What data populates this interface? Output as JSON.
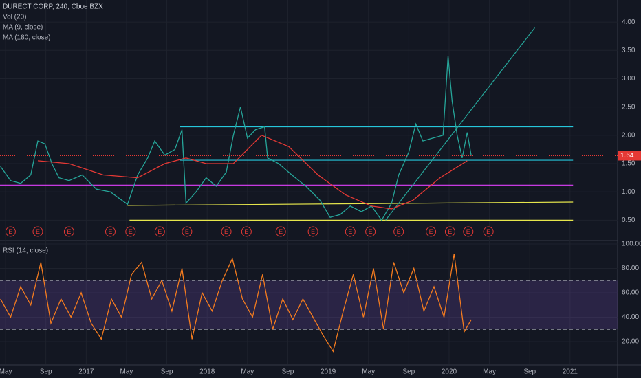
{
  "chart_data": [
    {
      "type": "line",
      "title": "DURECT CORP, 240, Cboe BZX",
      "indicators": [
        "Vol (20)",
        "MA (9, close)",
        "MA (180, close)"
      ],
      "xlim": [
        3.45,
        64.65
      ],
      "xticks": [
        {
          "value": 4,
          "label": "May"
        },
        {
          "value": 8,
          "label": "Sep"
        },
        {
          "value": 12,
          "label": "2017"
        },
        {
          "value": 16,
          "label": "May"
        },
        {
          "value": 20,
          "label": "Sep"
        },
        {
          "value": 24,
          "label": "2018"
        },
        {
          "value": 28,
          "label": "May"
        },
        {
          "value": 32,
          "label": "Sep"
        },
        {
          "value": 36,
          "label": "2019"
        },
        {
          "value": 40,
          "label": "May"
        },
        {
          "value": 44,
          "label": "Sep"
        },
        {
          "value": 48,
          "label": "2020"
        },
        {
          "value": 52,
          "label": "May"
        },
        {
          "value": 56,
          "label": "Sep"
        },
        {
          "value": 60,
          "label": "2021"
        }
      ],
      "ylim": [
        0.14,
        4.39
      ],
      "yticks": [
        {
          "value": 0.5,
          "label": "0.50"
        },
        {
          "value": 1,
          "label": "1.00"
        },
        {
          "value": 1.5,
          "label": "1.50"
        },
        {
          "value": 2,
          "label": "2.00"
        },
        {
          "value": 2.5,
          "label": "2.50"
        },
        {
          "value": 3,
          "label": "3.00"
        },
        {
          "value": 3.5,
          "label": "3.50"
        },
        {
          "value": 4,
          "label": "4.00"
        }
      ],
      "series": [
        {
          "color": "#26a69a",
          "x": [
            3.5,
            4.5,
            5.5,
            6.5,
            7.2,
            7.9,
            8.6,
            9.3,
            10.3,
            11.6,
            13,
            14.4,
            16.1,
            17.1,
            18.1,
            18.8,
            19.8,
            20.8,
            21.5,
            21.9,
            22.9,
            23.9,
            24.9,
            25.9,
            26.6,
            27.3,
            28,
            28.8,
            29.7,
            30,
            31.1,
            32.4,
            33.8,
            35.2,
            36.2,
            37.2,
            38.2,
            39.3,
            40.3,
            41.3,
            42.3,
            43,
            44,
            44.7,
            45.4,
            46.4,
            47.4,
            47.9,
            48.3,
            48.8,
            49.3,
            49.8,
            50.2
          ],
          "values": [
            1.45,
            1.2,
            1.15,
            1.3,
            1.9,
            1.85,
            1.5,
            1.25,
            1.2,
            1.3,
            1.05,
            1.0,
            0.78,
            1.3,
            1.6,
            1.9,
            1.65,
            1.75,
            2.1,
            0.8,
            1.0,
            1.25,
            1.1,
            1.35,
            2.0,
            2.5,
            1.95,
            2.1,
            2.15,
            1.6,
            1.5,
            1.3,
            1.1,
            0.85,
            0.55,
            0.6,
            0.75,
            0.65,
            0.75,
            0.5,
            0.8,
            1.3,
            1.7,
            2.2,
            1.9,
            1.95,
            2.0,
            3.4,
            2.6,
            2.0,
            1.6,
            2.05,
            1.64
          ]
        },
        {
          "color": "#e53935",
          "x": [
            7.2,
            10.3,
            13.7,
            17.1,
            19.8,
            21.9,
            23.9,
            26.6,
            29.4,
            32.1,
            35,
            37.7,
            40.3,
            42.3,
            44.4,
            47.1,
            49.8
          ],
          "values": [
            1.55,
            1.5,
            1.3,
            1.25,
            1.5,
            1.6,
            1.5,
            1.5,
            2.0,
            1.8,
            1.3,
            0.95,
            0.75,
            0.7,
            0.85,
            1.25,
            1.55
          ]
        }
      ],
      "drawings": [
        {
          "color": "#26c6da",
          "x": [
            21.3,
            60.3
          ],
          "y": [
            2.15,
            2.15
          ]
        },
        {
          "color": "#26c6da",
          "x": [
            21.3,
            60.3
          ],
          "y": [
            1.56,
            1.56
          ]
        },
        {
          "color": "#e040fb",
          "x": [
            3.45,
            60.3
          ],
          "y": [
            1.12,
            1.12
          ]
        },
        {
          "color": "#e6e64c",
          "x": [
            16.1,
            60.3
          ],
          "y": [
            0.76,
            0.82
          ]
        },
        {
          "color": "#e6e64c",
          "x": [
            16.3,
            60.3
          ],
          "y": [
            0.5,
            0.5
          ]
        },
        {
          "color": "#26a69a",
          "x": [
            41.7,
            56.5
          ],
          "y": [
            0.5,
            3.9
          ]
        }
      ],
      "last_price": 1.64,
      "earnings": {
        "label": "E",
        "x": [
          4.5,
          7.2,
          10.3,
          14.4,
          16.4,
          19.3,
          22,
          25.9,
          27.9,
          31.3,
          34.5,
          38.2,
          40.2,
          43,
          46.2,
          48.1,
          49.9,
          51.9
        ]
      }
    },
    {
      "type": "line",
      "title": "RSI (14, close)",
      "xlim": [
        3.45,
        64.65
      ],
      "ylim": [
        1.4,
        102.8
      ],
      "yticks": [
        {
          "value": 20,
          "label": "20.00"
        },
        {
          "value": 40,
          "label": "40.00"
        },
        {
          "value": 60,
          "label": "60.00"
        },
        {
          "value": 80,
          "label": "80.00"
        },
        {
          "value": 100,
          "label": "100.00"
        }
      ],
      "band": [
        30,
        70
      ],
      "series": [
        {
          "color": "#f57c1f",
          "x": [
            3.5,
            4.5,
            5.5,
            6.5,
            7.5,
            8.5,
            9.5,
            10.5,
            11.5,
            12.5,
            13.5,
            14.5,
            15.5,
            16.5,
            17.5,
            18.5,
            19.5,
            20.5,
            21.5,
            22.5,
            23.5,
            24.5,
            25.5,
            26.5,
            27.5,
            28.5,
            29.5,
            30.5,
            31.5,
            32.5,
            33.5,
            34.5,
            35.5,
            36.5,
            37.5,
            38.5,
            39.5,
            40.5,
            41.5,
            42.5,
            43.5,
            44.5,
            45.5,
            46.5,
            47.5,
            48.5,
            49.5,
            50.2
          ],
          "values": [
            55,
            40,
            65,
            50,
            85,
            35,
            55,
            40,
            60,
            35,
            22,
            55,
            40,
            75,
            85,
            55,
            70,
            45,
            80,
            22,
            60,
            45,
            70,
            88,
            55,
            40,
            75,
            30,
            55,
            38,
            55,
            40,
            25,
            12,
            45,
            75,
            40,
            80,
            30,
            85,
            60,
            80,
            45,
            65,
            40,
            92,
            28,
            38
          ]
        }
      ]
    }
  ]
}
